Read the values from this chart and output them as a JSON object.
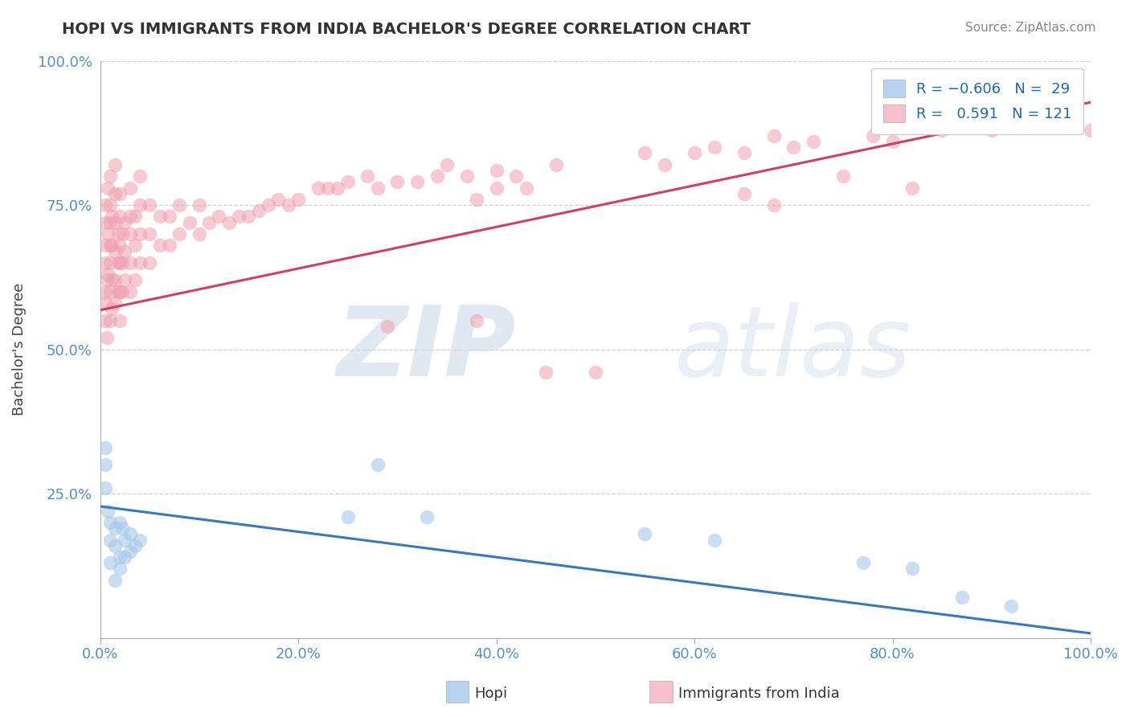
{
  "title": "HOPI VS IMMIGRANTS FROM INDIA BACHELOR'S DEGREE CORRELATION CHART",
  "source": "Source: ZipAtlas.com",
  "ylabel": "Bachelor's Degree",
  "x_tick_labels": [
    "0.0%",
    "20.0%",
    "40.0%",
    "60.0%",
    "80.0%",
    "100.0%"
  ],
  "y_tick_labels": [
    "",
    "25.0%",
    "50.0%",
    "75.0%",
    "100.0%"
  ],
  "xlim": [
    0.0,
    1.0
  ],
  "ylim": [
    0.0,
    1.0
  ],
  "hopi_color": "#a8c8e8",
  "india_color": "#f0a0b0",
  "hopi_line_color": "#3878c0",
  "india_line_color": "#d04060",
  "hopi_legend_color": "#b8d4f0",
  "india_legend_color": "#f8c0cc",
  "watermark_zip": "ZIP",
  "watermark_atlas": "atlas",
  "background_color": "#ffffff",
  "grid_color": "#cccccc",
  "hopi_points": [
    [
      0.005,
      0.3
    ],
    [
      0.005,
      0.26
    ],
    [
      0.008,
      0.22
    ],
    [
      0.01,
      0.17
    ],
    [
      0.01,
      0.13
    ],
    [
      0.01,
      0.2
    ],
    [
      0.015,
      0.16
    ],
    [
      0.015,
      0.1
    ],
    [
      0.015,
      0.19
    ],
    [
      0.02,
      0.14
    ],
    [
      0.02,
      0.12
    ],
    [
      0.02,
      0.2
    ],
    [
      0.022,
      0.19
    ],
    [
      0.025,
      0.17
    ],
    [
      0.025,
      0.14
    ],
    [
      0.03,
      0.18
    ],
    [
      0.03,
      0.15
    ],
    [
      0.035,
      0.16
    ],
    [
      0.04,
      0.17
    ],
    [
      0.005,
      0.33
    ],
    [
      0.25,
      0.21
    ],
    [
      0.28,
      0.3
    ],
    [
      0.33,
      0.21
    ],
    [
      0.55,
      0.18
    ],
    [
      0.62,
      0.17
    ],
    [
      0.77,
      0.13
    ],
    [
      0.82,
      0.12
    ],
    [
      0.87,
      0.07
    ],
    [
      0.92,
      0.055
    ]
  ],
  "india_points": [
    [
      0.005,
      0.6
    ],
    [
      0.005,
      0.55
    ],
    [
      0.005,
      0.68
    ],
    [
      0.005,
      0.72
    ],
    [
      0.005,
      0.65
    ],
    [
      0.005,
      0.58
    ],
    [
      0.005,
      0.75
    ],
    [
      0.007,
      0.52
    ],
    [
      0.007,
      0.62
    ],
    [
      0.008,
      0.78
    ],
    [
      0.008,
      0.7
    ],
    [
      0.008,
      0.63
    ],
    [
      0.01,
      0.55
    ],
    [
      0.01,
      0.6
    ],
    [
      0.01,
      0.65
    ],
    [
      0.01,
      0.68
    ],
    [
      0.01,
      0.72
    ],
    [
      0.01,
      0.75
    ],
    [
      0.01,
      0.8
    ],
    [
      0.012,
      0.57
    ],
    [
      0.012,
      0.62
    ],
    [
      0.012,
      0.68
    ],
    [
      0.012,
      0.73
    ],
    [
      0.015,
      0.58
    ],
    [
      0.015,
      0.62
    ],
    [
      0.015,
      0.67
    ],
    [
      0.015,
      0.72
    ],
    [
      0.015,
      0.77
    ],
    [
      0.015,
      0.82
    ],
    [
      0.018,
      0.6
    ],
    [
      0.018,
      0.65
    ],
    [
      0.018,
      0.7
    ],
    [
      0.02,
      0.55
    ],
    [
      0.02,
      0.6
    ],
    [
      0.02,
      0.65
    ],
    [
      0.02,
      0.68
    ],
    [
      0.02,
      0.73
    ],
    [
      0.02,
      0.77
    ],
    [
      0.022,
      0.6
    ],
    [
      0.022,
      0.65
    ],
    [
      0.022,
      0.7
    ],
    [
      0.025,
      0.62
    ],
    [
      0.025,
      0.67
    ],
    [
      0.025,
      0.72
    ],
    [
      0.03,
      0.6
    ],
    [
      0.03,
      0.65
    ],
    [
      0.03,
      0.7
    ],
    [
      0.03,
      0.73
    ],
    [
      0.03,
      0.78
    ],
    [
      0.035,
      0.62
    ],
    [
      0.035,
      0.68
    ],
    [
      0.035,
      0.73
    ],
    [
      0.04,
      0.65
    ],
    [
      0.04,
      0.7
    ],
    [
      0.04,
      0.75
    ],
    [
      0.04,
      0.8
    ],
    [
      0.05,
      0.65
    ],
    [
      0.05,
      0.7
    ],
    [
      0.05,
      0.75
    ],
    [
      0.06,
      0.68
    ],
    [
      0.06,
      0.73
    ],
    [
      0.07,
      0.68
    ],
    [
      0.07,
      0.73
    ],
    [
      0.08,
      0.7
    ],
    [
      0.08,
      0.75
    ],
    [
      0.09,
      0.72
    ],
    [
      0.1,
      0.7
    ],
    [
      0.1,
      0.75
    ],
    [
      0.11,
      0.72
    ],
    [
      0.12,
      0.73
    ],
    [
      0.13,
      0.72
    ],
    [
      0.14,
      0.73
    ],
    [
      0.15,
      0.73
    ],
    [
      0.16,
      0.74
    ],
    [
      0.17,
      0.75
    ],
    [
      0.18,
      0.76
    ],
    [
      0.19,
      0.75
    ],
    [
      0.2,
      0.76
    ],
    [
      0.22,
      0.78
    ],
    [
      0.23,
      0.78
    ],
    [
      0.24,
      0.78
    ],
    [
      0.25,
      0.79
    ],
    [
      0.27,
      0.8
    ],
    [
      0.28,
      0.78
    ],
    [
      0.29,
      0.54
    ],
    [
      0.3,
      0.79
    ],
    [
      0.32,
      0.79
    ],
    [
      0.34,
      0.8
    ],
    [
      0.35,
      0.82
    ],
    [
      0.37,
      0.8
    ],
    [
      0.38,
      0.55
    ],
    [
      0.4,
      0.81
    ],
    [
      0.42,
      0.8
    ],
    [
      0.43,
      0.78
    ],
    [
      0.45,
      0.46
    ],
    [
      0.46,
      0.82
    ],
    [
      0.5,
      0.46
    ],
    [
      0.55,
      0.84
    ],
    [
      0.57,
      0.82
    ],
    [
      0.6,
      0.84
    ],
    [
      0.62,
      0.85
    ],
    [
      0.65,
      0.84
    ],
    [
      0.68,
      0.87
    ],
    [
      0.7,
      0.85
    ],
    [
      0.72,
      0.86
    ],
    [
      0.75,
      0.8
    ],
    [
      0.78,
      0.87
    ],
    [
      0.8,
      0.86
    ],
    [
      0.82,
      0.78
    ],
    [
      0.85,
      0.88
    ],
    [
      0.88,
      0.9
    ],
    [
      0.9,
      0.88
    ],
    [
      0.92,
      0.9
    ],
    [
      0.95,
      0.92
    ],
    [
      0.97,
      0.91
    ],
    [
      1.0,
      0.88
    ],
    [
      0.65,
      0.77
    ],
    [
      0.68,
      0.75
    ],
    [
      0.4,
      0.78
    ],
    [
      0.38,
      0.76
    ]
  ],
  "hopi_trend": [
    -0.22,
    0.228
  ],
  "india_trend": [
    0.36,
    0.568
  ]
}
